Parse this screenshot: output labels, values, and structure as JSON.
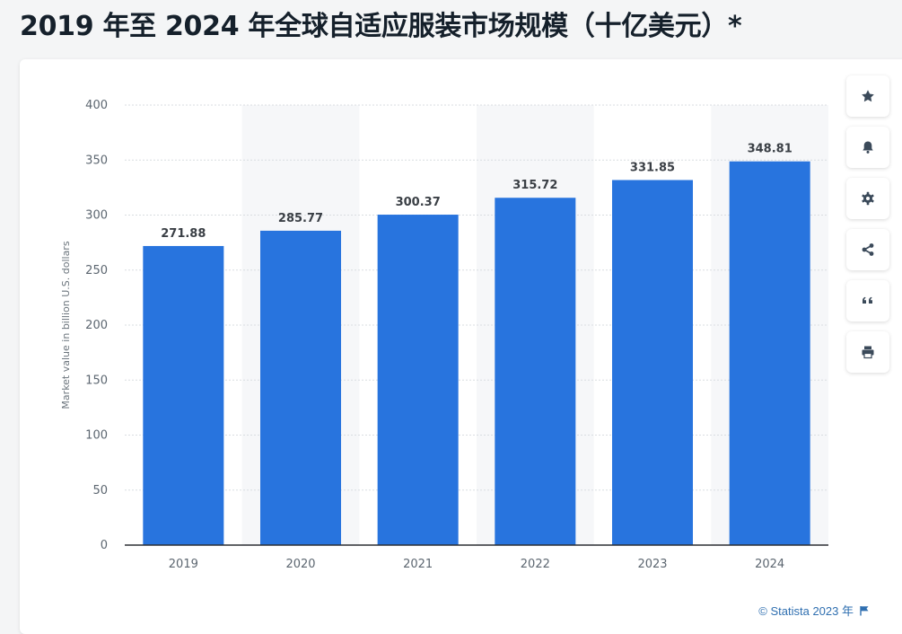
{
  "page": {
    "title": "2019 年至 2024 年全球自适应服装市场规模（十亿美元）*"
  },
  "toolbar": {
    "buttons": [
      {
        "icon": "star-icon"
      },
      {
        "icon": "bell-icon"
      },
      {
        "icon": "gear-icon"
      },
      {
        "icon": "share-icon"
      },
      {
        "icon": "quote-icon"
      },
      {
        "icon": "print-icon"
      }
    ]
  },
  "footer": {
    "credit": "© Statista 2023 年",
    "flag_icon": "flag-icon"
  },
  "colors": {
    "bar": "#2874de",
    "grid": "#d9dde1",
    "band": "#f6f7f9",
    "axis": "#2b2f33"
  },
  "chart_data": {
    "type": "bar",
    "categories": [
      "2019",
      "2020",
      "2021",
      "2022",
      "2023",
      "2024"
    ],
    "values": [
      271.88,
      285.77,
      300.37,
      315.72,
      331.85,
      348.81
    ],
    "value_labels": [
      "271.88",
      "285.77",
      "300.37",
      "315.72",
      "331.85",
      "348.81"
    ],
    "ylabel": "Market value in billion U.S. dollars",
    "xlabel": "",
    "ylim": [
      0,
      400
    ],
    "yticks": [
      "0",
      "50",
      "100",
      "150",
      "200",
      "250",
      "300",
      "350",
      "400"
    ],
    "grid": true,
    "legend": "none"
  }
}
